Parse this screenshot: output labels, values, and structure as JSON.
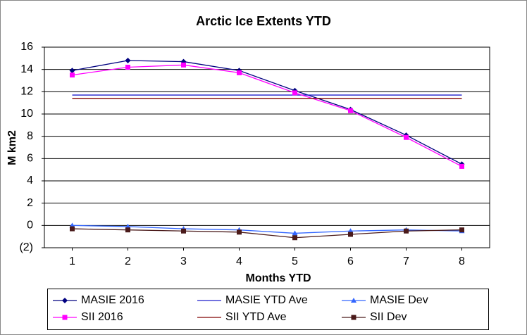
{
  "chart_data": {
    "type": "line",
    "title": "Arctic Ice Extents YTD",
    "x_label": "Months YTD",
    "y_label": "M km2",
    "x": [
      1,
      2,
      3,
      4,
      5,
      6,
      7,
      8
    ],
    "xlim": [
      0.5,
      8.5
    ],
    "xticks": [
      1,
      2,
      3,
      4,
      5,
      6,
      7,
      8
    ],
    "ylim": [
      -2,
      16
    ],
    "yticks": [
      {
        "value": -2,
        "label": "(2)",
        "color": "#cc0000"
      },
      0,
      2,
      4,
      6,
      8,
      10,
      12,
      14,
      16
    ],
    "grid": true,
    "legend": "bottom",
    "series": [
      {
        "name": "MASIE 2016",
        "color": "#000080",
        "marker": "diamond",
        "values": [
          13.9,
          14.8,
          14.7,
          13.9,
          12.1,
          10.4,
          8.1,
          5.5
        ]
      },
      {
        "name": "MASIE YTD Ave",
        "color": "#1f1fcc",
        "marker": "none",
        "values": [
          11.7,
          11.7,
          11.7,
          11.7,
          11.7,
          11.7,
          11.7,
          11.7
        ]
      },
      {
        "name": "MASIE Dev",
        "color": "#3366ff",
        "marker": "triangle",
        "values": [
          0.0,
          -0.1,
          -0.3,
          -0.4,
          -0.7,
          -0.5,
          -0.4,
          -0.5
        ]
      },
      {
        "name": "SII 2016",
        "color": "#ff00ff",
        "marker": "square",
        "values": [
          13.5,
          14.2,
          14.4,
          13.7,
          11.9,
          10.3,
          7.9,
          5.3
        ]
      },
      {
        "name": "SII YTD Ave",
        "color": "#800000",
        "marker": "none",
        "values": [
          11.4,
          11.4,
          11.4,
          11.4,
          11.4,
          11.4,
          11.4,
          11.4
        ]
      },
      {
        "name": "SII  Dev",
        "color": "#4a1a1a",
        "marker": "square",
        "values": [
          -0.3,
          -0.4,
          -0.5,
          -0.6,
          -1.1,
          -0.8,
          -0.5,
          -0.4
        ]
      }
    ]
  }
}
